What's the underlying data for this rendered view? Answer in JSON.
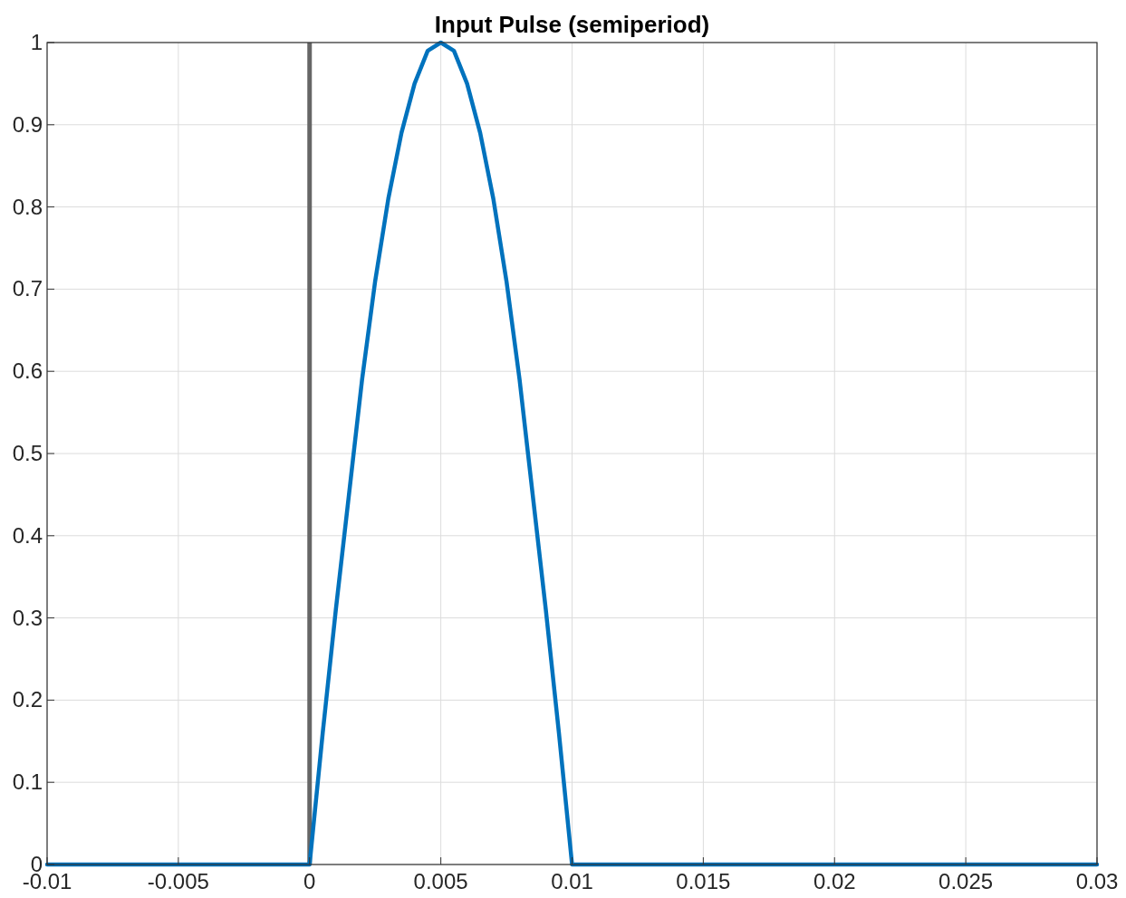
{
  "chart_data": {
    "type": "line",
    "title": "Input Pulse (semiperiod)",
    "x": [
      -0.01,
      0,
      0.0005,
      0.001,
      0.0015,
      0.002,
      0.0025,
      0.003,
      0.0035,
      0.004,
      0.0045,
      0.005,
      0.0055,
      0.006,
      0.0065,
      0.007,
      0.0075,
      0.008,
      0.0085,
      0.009,
      0.0095,
      0.01,
      0.03
    ],
    "series": [
      {
        "color": "#0072bd",
        "values": [
          0,
          0,
          0.16,
          0.31,
          0.45,
          0.59,
          0.71,
          0.81,
          0.89,
          0.95,
          0.99,
          1,
          0.99,
          0.95,
          0.89,
          0.81,
          0.71,
          0.59,
          0.45,
          0.31,
          0.16,
          0,
          0
        ]
      }
    ],
    "xlim": [
      -0.01,
      0.03
    ],
    "xticks": [
      -0.01,
      -0.005,
      0,
      0.005,
      0.01,
      0.015,
      0.02,
      0.025,
      0.03
    ],
    "ylim": [
      0,
      1
    ],
    "yticks": [
      0,
      0.1,
      0.2,
      0.3,
      0.4,
      0.5,
      0.6,
      0.7,
      0.8,
      0.9,
      1
    ],
    "ref_lines": [
      {
        "axis": "x",
        "value": 0,
        "color": "#666666"
      }
    ],
    "grid": true,
    "line_style": "solid",
    "marker": "none"
  }
}
